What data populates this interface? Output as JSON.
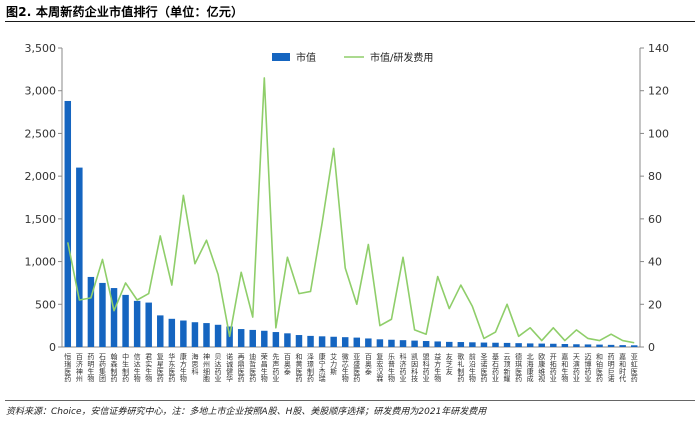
{
  "figure": {
    "title": "图2. 本周新药企业市值排行（单位：亿元）",
    "source": "资料来源：Choice，安信证券研究中心，注：多地上市企业按照A股、H股、美股顺序选择；研发费用为2021年研发费用"
  },
  "chart_data": {
    "type": "bar",
    "categories": [
      "恒瑞医药",
      "百济神州",
      "药明生物",
      "石药集团",
      "翰森制药",
      "中生制药",
      "信达生物",
      "君实生物",
      "复星医药",
      "华东医药",
      "康方生物",
      "海思科",
      "神州细胞",
      "贝达药业",
      "诺诚健华",
      "再鼎医药",
      "迪哲医药",
      "荣昌生物",
      "先声药业",
      "百奥泰",
      "和黄医药",
      "泽璟制药",
      "康宁杰瑞",
      "艾力斯",
      "微芯生物",
      "亚盛医药",
      "百奥泰",
      "复宏汉霖",
      "乐普生物",
      "科济药业",
      "凯因科技",
      "盟科药业",
      "益方生物",
      "友芝友",
      "歌礼制药",
      "前沿生物",
      "圣诺医药",
      "基石药业",
      "云顶新耀",
      "德琪医药",
      "北海康成",
      "欧康维视",
      "开拓药业",
      "嘉和生物",
      "天演药业",
      "迈博药业",
      "和铂医药",
      "药明巨诺",
      "嘉和时代",
      "亚虹医药"
    ],
    "series": [
      {
        "name": "市值",
        "type": "bar",
        "axis": "left",
        "values": [
          2880,
          2100,
          820,
          750,
          690,
          610,
          540,
          520,
          370,
          330,
          310,
          290,
          280,
          260,
          240,
          210,
          200,
          190,
          175,
          160,
          140,
          130,
          125,
          120,
          115,
          110,
          100,
          90,
          85,
          80,
          75,
          70,
          65,
          60,
          58,
          55,
          52,
          50,
          48,
          45,
          42,
          40,
          38,
          35,
          32,
          30,
          28,
          25,
          22,
          20
        ]
      },
      {
        "name": "市值/研发费用",
        "type": "line",
        "axis": "right",
        "values": [
          49,
          22,
          23,
          41,
          17,
          30,
          22,
          25,
          52,
          29,
          71,
          39,
          50,
          34,
          5,
          35,
          14,
          126,
          9,
          42,
          25,
          26,
          58,
          93,
          37,
          20,
          48,
          10,
          13,
          42,
          8,
          6,
          33,
          18,
          29,
          19,
          4,
          7,
          20,
          5,
          9,
          3,
          9,
          3,
          8,
          4,
          3,
          6,
          3,
          2
        ]
      }
    ],
    "y_left": {
      "min": 0,
      "max": 3500,
      "ticks": [
        "0",
        "500",
        "1,000",
        "1,500",
        "2,000",
        "2,500",
        "3,000",
        "3,500"
      ]
    },
    "y_right": {
      "min": 0,
      "max": 140,
      "ticks": [
        "0",
        "20",
        "40",
        "60",
        "80",
        "100",
        "120",
        "140"
      ]
    },
    "colors": {
      "bar": "#1565c0",
      "line": "#8fce6a",
      "axis": "#888888"
    },
    "legend": {
      "position": "top-center"
    }
  }
}
